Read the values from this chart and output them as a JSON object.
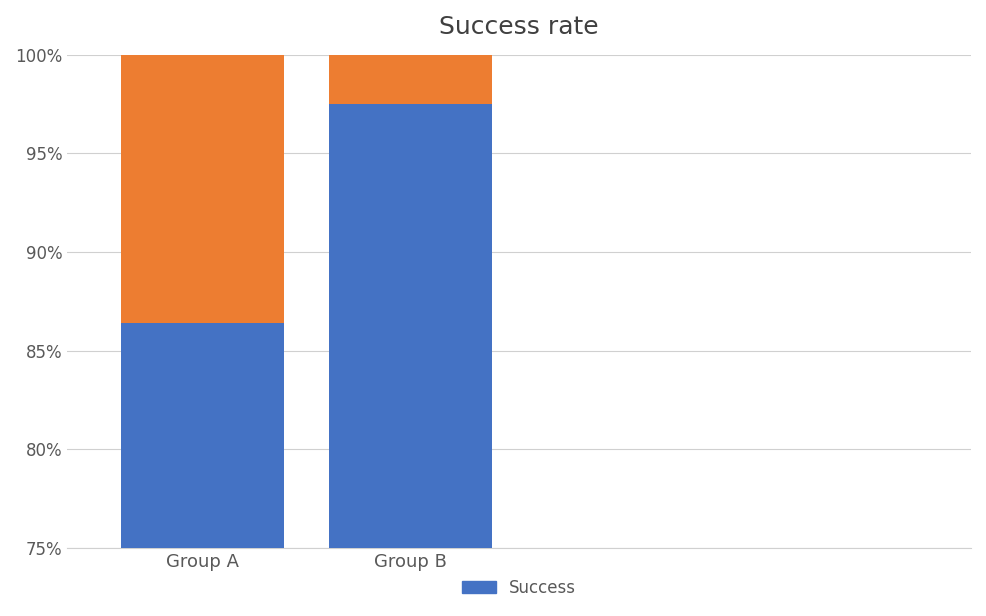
{
  "title": "Success rate",
  "categories": [
    "Group A",
    "Group B"
  ],
  "success_values": [
    86.4,
    97.5
  ],
  "total_values": [
    100,
    100
  ],
  "blue_color": "#4472C4",
  "orange_color": "#ED7D31",
  "ylim": [
    75,
    100
  ],
  "yticks": [
    75,
    80,
    85,
    90,
    95,
    100
  ],
  "ytick_labels": [
    "75%",
    "80%",
    "85%",
    "90%",
    "95%",
    "100%"
  ],
  "legend_label": "Success",
  "background_color": "#FFFFFF",
  "title_fontsize": 18,
  "tick_fontsize": 12,
  "legend_fontsize": 12,
  "bar_width": 0.18,
  "bar_positions": [
    0.15,
    0.38
  ],
  "xlim": [
    0,
    1.0
  ]
}
